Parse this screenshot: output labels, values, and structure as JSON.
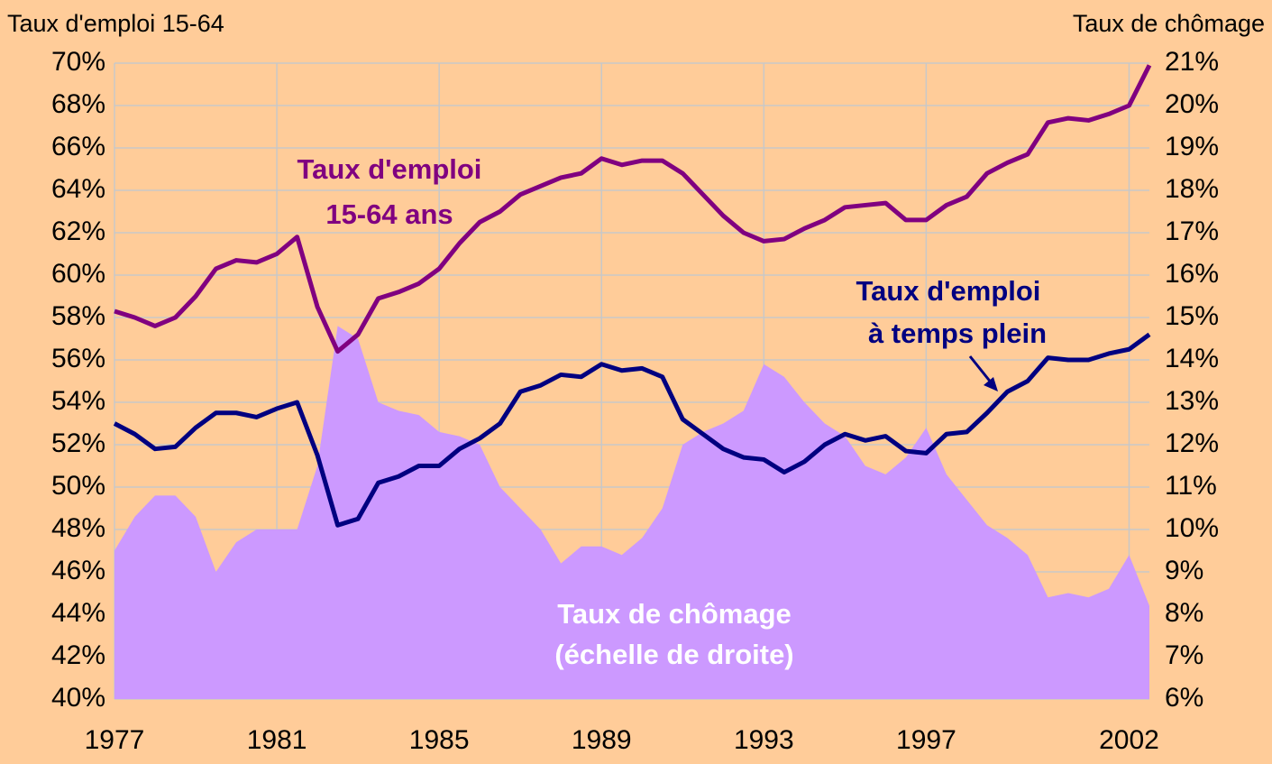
{
  "chart_data": {
    "type": "line",
    "y_label": "Taux d'emploi 15-64",
    "y2_label": "Taux de chômage",
    "xlim": [
      1977,
      2002.5
    ],
    "xticks": [
      1977,
      1981,
      1985,
      1989,
      1993,
      1997,
      2002
    ],
    "ylim": [
      40,
      70
    ],
    "yticks": [
      {
        "value": 40,
        "label": "40%"
      },
      {
        "value": 42,
        "label": "42%"
      },
      {
        "value": 44,
        "label": "44%"
      },
      {
        "value": 46,
        "label": "46%"
      },
      {
        "value": 48,
        "label": "48%"
      },
      {
        "value": 50,
        "label": "50%"
      },
      {
        "value": 52,
        "label": "52%"
      },
      {
        "value": 54,
        "label": "54%"
      },
      {
        "value": 56,
        "label": "56%"
      },
      {
        "value": 58,
        "label": "58%"
      },
      {
        "value": 60,
        "label": "60%"
      },
      {
        "value": 62,
        "label": "62%"
      },
      {
        "value": 64,
        "label": "64%"
      },
      {
        "value": 66,
        "label": "66%"
      },
      {
        "value": 68,
        "label": "68%"
      },
      {
        "value": 70,
        "label": "70%"
      }
    ],
    "y2lim": [
      6,
      21
    ],
    "y2ticks": [
      {
        "value": 6,
        "label": "6%"
      },
      {
        "value": 7,
        "label": "7%"
      },
      {
        "value": 8,
        "label": "8%"
      },
      {
        "value": 9,
        "label": "9%"
      },
      {
        "value": 10,
        "label": "10%"
      },
      {
        "value": 11,
        "label": "11%"
      },
      {
        "value": 12,
        "label": "12%"
      },
      {
        "value": 13,
        "label": "13%"
      },
      {
        "value": 14,
        "label": "14%"
      },
      {
        "value": 15,
        "label": "15%"
      },
      {
        "value": 16,
        "label": "16%"
      },
      {
        "value": 17,
        "label": "17%"
      },
      {
        "value": 18,
        "label": "18%"
      },
      {
        "value": 19,
        "label": "19%"
      },
      {
        "value": 20,
        "label": "20%"
      },
      {
        "value": 21,
        "label": "21%"
      }
    ],
    "grid": true,
    "x": [
      1977,
      1977.5,
      1978,
      1978.5,
      1979,
      1979.5,
      1980,
      1980.5,
      1981,
      1981.5,
      1982,
      1982.5,
      1983,
      1983.5,
      1984,
      1984.5,
      1985,
      1985.5,
      1986,
      1986.5,
      1987,
      1987.5,
      1988,
      1988.5,
      1989,
      1989.5,
      1990,
      1990.5,
      1991,
      1991.5,
      1992,
      1992.5,
      1993,
      1993.5,
      1994,
      1994.5,
      1995,
      1995.5,
      1996,
      1996.5,
      1997,
      1997.5,
      1998,
      1998.5,
      1999,
      1999.5,
      2000,
      2000.5,
      2001,
      2001.5,
      2002,
      2002.5
    ],
    "series": [
      {
        "name": "Taux de chômage",
        "type": "area",
        "axis": "y2",
        "color": "#cc99ff",
        "values": [
          9.5,
          10.3,
          10.8,
          10.8,
          10.3,
          9.0,
          9.7,
          10.0,
          10.0,
          10.0,
          11.5,
          14.8,
          14.5,
          13.0,
          12.8,
          12.7,
          12.3,
          12.2,
          12.0,
          11.0,
          10.5,
          10.0,
          9.2,
          9.6,
          9.6,
          9.4,
          9.8,
          10.5,
          12.0,
          12.3,
          12.5,
          12.8,
          13.9,
          13.6,
          13.0,
          12.5,
          12.2,
          11.5,
          11.3,
          11.7,
          12.4,
          11.3,
          10.7,
          10.1,
          9.8,
          9.4,
          8.4,
          8.5,
          8.4,
          8.6,
          9.4,
          8.2
        ]
      },
      {
        "name": "Taux d'emploi 15-64 ans",
        "type": "line",
        "color": "#800080",
        "values": [
          58.3,
          58.0,
          57.6,
          58.0,
          59.0,
          60.3,
          60.7,
          60.6,
          61.0,
          61.8,
          58.5,
          56.4,
          57.2,
          58.9,
          59.2,
          59.6,
          60.3,
          61.5,
          62.5,
          63.0,
          63.8,
          64.2,
          64.6,
          64.8,
          65.5,
          65.2,
          65.4,
          65.4,
          64.8,
          63.8,
          62.8,
          62.0,
          61.6,
          61.7,
          62.2,
          62.6,
          63.2,
          63.3,
          63.4,
          62.6,
          62.6,
          63.3,
          63.7,
          64.8,
          65.3,
          65.7,
          67.2,
          67.4,
          67.3,
          67.6,
          68.0,
          69.9
        ]
      },
      {
        "name": "Taux d'emploi à temps plein",
        "type": "line",
        "color": "#000080",
        "values": [
          53.0,
          52.5,
          51.8,
          51.9,
          52.8,
          53.5,
          53.5,
          53.3,
          53.7,
          54.0,
          51.5,
          48.2,
          48.5,
          50.2,
          50.5,
          51.0,
          51.0,
          51.8,
          52.3,
          53.0,
          54.5,
          54.8,
          55.3,
          55.2,
          55.8,
          55.5,
          55.6,
          55.2,
          53.2,
          52.5,
          51.8,
          51.4,
          51.3,
          50.7,
          51.2,
          52.0,
          52.5,
          52.2,
          52.4,
          51.7,
          51.6,
          52.5,
          52.6,
          53.5,
          54.5,
          55.0,
          56.1,
          56.0,
          56.0,
          56.3,
          56.5,
          57.2
        ]
      }
    ],
    "annotations": [
      {
        "lines": [
          "Taux d'emploi",
          "15-64 ans"
        ]
      },
      {
        "lines": [
          "Taux d'emploi",
          "à temps plein"
        ]
      },
      {
        "lines": [
          "Taux de chômage",
          "(échelle de droite)"
        ]
      }
    ]
  }
}
